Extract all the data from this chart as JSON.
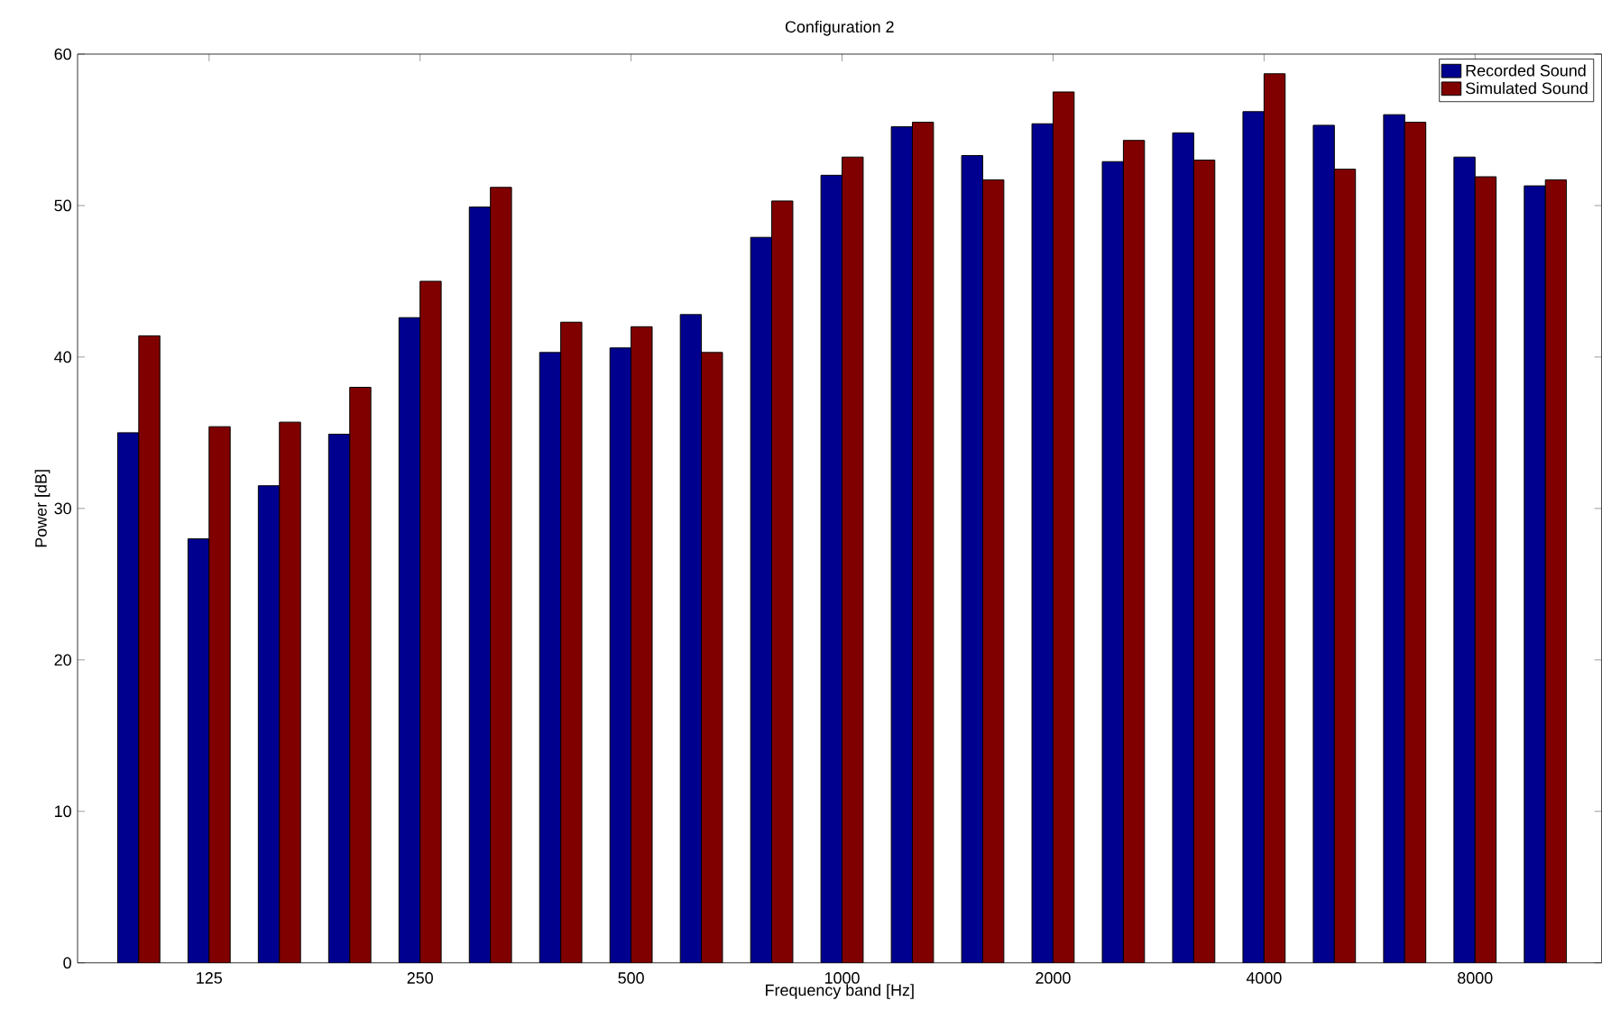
{
  "chart_data": {
    "type": "bar",
    "title": "Configuration 2",
    "xlabel": "Frequency band [Hz]",
    "ylabel": "Power [dB]",
    "categories": [
      null,
      "125",
      null,
      null,
      "250",
      null,
      null,
      "500",
      null,
      null,
      "1000",
      null,
      null,
      "2000",
      null,
      null,
      "4000",
      null,
      null,
      "8000",
      null
    ],
    "series": [
      {
        "name": "Recorded Sound",
        "color": "#00008f",
        "values": [
          35.0,
          28.0,
          31.5,
          34.9,
          42.6,
          49.9,
          40.3,
          40.6,
          42.8,
          47.9,
          52.0,
          55.2,
          53.3,
          55.4,
          52.9,
          54.8,
          56.2,
          55.3,
          56.0,
          53.2,
          51.3
        ]
      },
      {
        "name": "Simulated Sound",
        "color": "#800000",
        "values": [
          41.4,
          35.4,
          35.7,
          38.0,
          45.0,
          51.2,
          42.3,
          42.0,
          40.3,
          50.3,
          53.2,
          55.5,
          51.7,
          57.5,
          54.3,
          53.0,
          58.7,
          52.4,
          55.5,
          51.9,
          51.7
        ]
      }
    ],
    "ylim": [
      0,
      60
    ],
    "yticks": [
      0,
      10,
      20,
      30,
      40,
      50,
      60
    ],
    "legend": "top right"
  }
}
